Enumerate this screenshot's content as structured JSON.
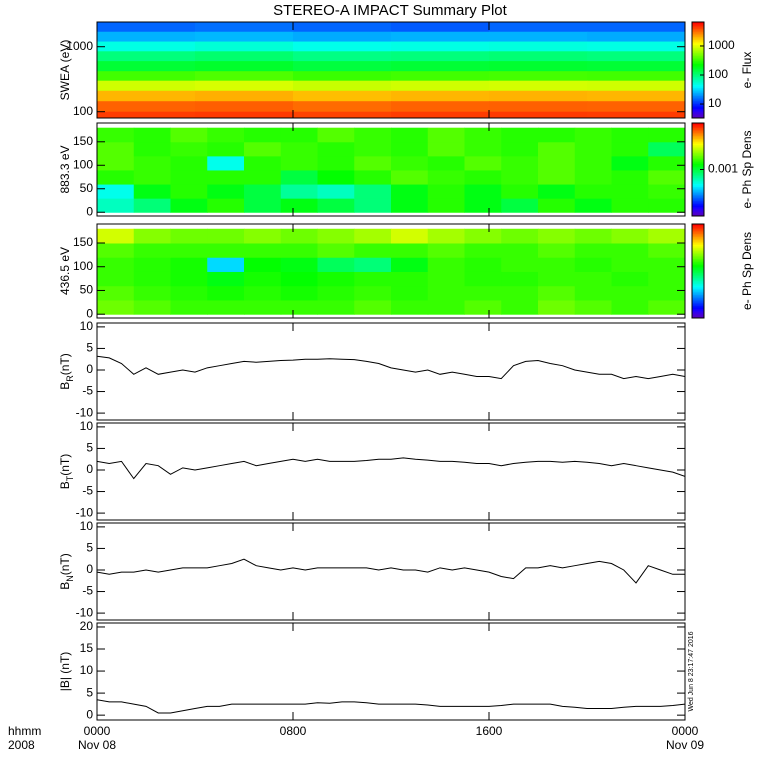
{
  "chart_data": [
    {
      "type": "heatmap",
      "title": "STEREO-A IMPACT Summary Plot",
      "ylabel": "SWEA (eV)",
      "ylog": true,
      "ylim": [
        80,
        2400
      ],
      "yticks": [
        100,
        1000
      ],
      "xlim": [
        0,
        24
      ],
      "xbins": [
        0,
        4,
        8,
        12,
        16,
        20,
        24
      ],
      "ybins": [
        2400,
        1700,
        1200,
        850,
        600,
        420,
        300,
        210,
        145,
        100,
        80
      ],
      "z": [
        [
          15,
          16,
          15,
          14,
          15,
          15
        ],
        [
          25,
          26,
          24,
          25,
          25,
          24
        ],
        [
          50,
          55,
          48,
          50,
          52,
          50
        ],
        [
          100,
          110,
          95,
          100,
          105,
          100
        ],
        [
          160,
          170,
          150,
          160,
          165,
          160
        ],
        [
          350,
          380,
          330,
          350,
          360,
          350
        ],
        [
          900,
          950,
          850,
          900,
          920,
          900
        ],
        [
          2000,
          2100,
          1900,
          2000,
          2050,
          2000
        ],
        [
          3500,
          3600,
          3300,
          3500,
          3550,
          3500
        ],
        [
          4500,
          4600,
          4300,
          4500,
          4550,
          4500
        ]
      ],
      "colormap": "rainbow",
      "clog": true,
      "clim": [
        3.3,
        6700
      ],
      "cbticks": [
        10,
        100,
        1000
      ],
      "cblabel": "e- Flux"
    },
    {
      "type": "heatmap",
      "ylabel": "883.3 eV",
      "ylog": false,
      "ylim": [
        -8,
        190
      ],
      "yticks": [
        0,
        50,
        100,
        150
      ],
      "xlim": [
        0,
        24
      ],
      "xbins": [
        0,
        1.5,
        3,
        4.5,
        6,
        7.5,
        9,
        10.5,
        12,
        13.5,
        15,
        16.5,
        18,
        19.5,
        21,
        22.5,
        24
      ],
      "ybins": [
        0,
        30,
        60,
        90,
        120,
        150,
        180
      ],
      "z": [
        [
          0.0006,
          0.0008,
          0.0012,
          0.0015,
          0.001,
          0.0012,
          0.001,
          0.0008,
          0.0012,
          0.0015,
          0.0012,
          0.001,
          0.0015,
          0.0012,
          0.0015,
          0.0015
        ],
        [
          0.0005,
          0.0012,
          0.0015,
          0.0012,
          0.001,
          0.0007,
          0.0006,
          0.0008,
          0.0012,
          0.0015,
          0.0012,
          0.0015,
          0.0012,
          0.0015,
          0.0015,
          0.0016
        ],
        [
          0.0015,
          0.0016,
          0.0015,
          0.0015,
          0.0015,
          0.001,
          0.0013,
          0.0015,
          0.0018,
          0.0016,
          0.0015,
          0.0016,
          0.0018,
          0.0016,
          0.0015,
          0.0018
        ],
        [
          0.0018,
          0.0016,
          0.0015,
          0.0005,
          0.0015,
          0.0016,
          0.0015,
          0.0018,
          0.0016,
          0.0015,
          0.0018,
          0.0016,
          0.0018,
          0.0016,
          0.0012,
          0.0015
        ],
        [
          0.0018,
          0.0015,
          0.0016,
          0.0015,
          0.0018,
          0.0016,
          0.0015,
          0.0016,
          0.0015,
          0.0018,
          0.0016,
          0.0015,
          0.0018,
          0.0016,
          0.0015,
          0.0009
        ],
        [
          0.0016,
          0.0015,
          0.0018,
          0.0016,
          0.0015,
          0.0015,
          0.0018,
          0.0016,
          0.0015,
          0.0018,
          0.0016,
          0.0015,
          0.0015,
          0.0016,
          0.0015,
          0.0015
        ]
      ],
      "colormap": "rainbow",
      "clog": true,
      "clim": [
        0.0001,
        0.01
      ],
      "cbticks": [
        0.001
      ],
      "cblabel": "e- Ph Sp Dens"
    },
    {
      "type": "heatmap",
      "ylabel": "436.5 eV",
      "ylog": false,
      "ylim": [
        -8,
        190
      ],
      "yticks": [
        0,
        50,
        100,
        150
      ],
      "xlim": [
        0,
        24
      ],
      "xbins": [
        0,
        1.5,
        3,
        4.5,
        6,
        7.5,
        9,
        10.5,
        12,
        13.5,
        15,
        16.5,
        18,
        19.5,
        21,
        22.5,
        24
      ],
      "ybins": [
        0,
        30,
        60,
        90,
        120,
        150,
        180
      ],
      "z": [
        [
          0.002,
          0.0018,
          0.0016,
          0.0016,
          0.0016,
          0.0016,
          0.0016,
          0.0018,
          0.0016,
          0.0016,
          0.0018,
          0.0016,
          0.002,
          0.0018,
          0.0016,
          0.0018
        ],
        [
          0.0018,
          0.0016,
          0.0015,
          0.0014,
          0.0015,
          0.0014,
          0.0015,
          0.0016,
          0.0015,
          0.0016,
          0.0016,
          0.0016,
          0.0018,
          0.0016,
          0.0016,
          0.0016
        ],
        [
          0.0016,
          0.0015,
          0.0014,
          0.0012,
          0.0014,
          0.0013,
          0.0014,
          0.0015,
          0.0015,
          0.0016,
          0.0015,
          0.0015,
          0.0016,
          0.0016,
          0.0015,
          0.0016
        ],
        [
          0.0016,
          0.0015,
          0.0014,
          0.0004,
          0.0013,
          0.0012,
          0.0009,
          0.0008,
          0.0012,
          0.0016,
          0.0015,
          0.0016,
          0.0016,
          0.0015,
          0.0016,
          0.0016
        ],
        [
          0.0018,
          0.0016,
          0.0016,
          0.0016,
          0.0016,
          0.0016,
          0.0018,
          0.0016,
          0.0016,
          0.0018,
          0.0016,
          0.0016,
          0.0018,
          0.0016,
          0.0016,
          0.0018
        ],
        [
          0.003,
          0.0022,
          0.002,
          0.002,
          0.0022,
          0.002,
          0.0022,
          0.0025,
          0.003,
          0.0025,
          0.0022,
          0.002,
          0.0022,
          0.002,
          0.0022,
          0.0025
        ]
      ],
      "colormap": "rainbow",
      "clog": true,
      "clim": [
        0.0001,
        0.01
      ],
      "cblabel": "e- Ph Sp Dens"
    },
    {
      "type": "line",
      "ylabel": "B",
      "ylabel_sub": "R",
      "ylabel_unit": "(nT)",
      "ylim": [
        -11.6,
        10.9
      ],
      "yticks": [
        -10,
        -5,
        0,
        5,
        10
      ],
      "xlim": [
        0,
        24
      ],
      "x": [
        0,
        0.5,
        1,
        1.5,
        2,
        2.5,
        3,
        3.5,
        4,
        4.5,
        5,
        5.5,
        6,
        6.5,
        7,
        7.5,
        8,
        8.5,
        9,
        9.5,
        10,
        10.5,
        11,
        11.5,
        12,
        12.5,
        13,
        13.5,
        14,
        14.5,
        15,
        15.5,
        16,
        16.5,
        17,
        17.5,
        18,
        18.5,
        19,
        19.5,
        20,
        20.5,
        21,
        21.5,
        22,
        22.5,
        23,
        23.5,
        24
      ],
      "series": [
        {
          "color": "#000000",
          "values": [
            3.2,
            2.8,
            1.5,
            -1,
            0.5,
            -1,
            -0.5,
            0,
            -0.5,
            0.5,
            1,
            1.5,
            2,
            1.8,
            2,
            2.2,
            2.3,
            2.5,
            2.5,
            2.6,
            2.5,
            2.4,
            2,
            1.5,
            0.5,
            0,
            -0.5,
            0,
            -1,
            -0.5,
            -1,
            -1.5,
            -1.5,
            -2,
            1,
            2,
            2.2,
            1.5,
            1,
            0,
            -0.5,
            -1,
            -1,
            -2,
            -1.5,
            -2,
            -1.5,
            -1,
            -1.5
          ]
        }
      ]
    },
    {
      "type": "line",
      "ylabel": "B",
      "ylabel_sub": "T",
      "ylabel_unit": "(nT)",
      "ylim": [
        -11.6,
        10.9
      ],
      "yticks": [
        -10,
        -5,
        0,
        5,
        10
      ],
      "xlim": [
        0,
        24
      ],
      "x": [
        0,
        0.5,
        1,
        1.5,
        2,
        2.5,
        3,
        3.5,
        4,
        4.5,
        5,
        5.5,
        6,
        6.5,
        7,
        7.5,
        8,
        8.5,
        9,
        9.5,
        10,
        10.5,
        11,
        11.5,
        12,
        12.5,
        13,
        13.5,
        14,
        14.5,
        15,
        15.5,
        16,
        16.5,
        17,
        17.5,
        18,
        18.5,
        19,
        19.5,
        20,
        20.5,
        21,
        21.5,
        22,
        22.5,
        23,
        23.5,
        24
      ],
      "series": [
        {
          "color": "#000000",
          "values": [
            2,
            1.5,
            2,
            -2,
            1.5,
            1,
            -1,
            0.5,
            0,
            0.5,
            1,
            1.5,
            2,
            1,
            1.5,
            2,
            2.5,
            2,
            2.5,
            2,
            2,
            2,
            2.2,
            2.5,
            2.5,
            2.8,
            2.5,
            2.3,
            2,
            2,
            1.8,
            1.5,
            1.5,
            1,
            1.5,
            1.8,
            2,
            2,
            1.8,
            2,
            1.8,
            1.5,
            1,
            1.5,
            1,
            0.5,
            0,
            -0.5,
            -1.5
          ]
        }
      ]
    },
    {
      "type": "line",
      "ylabel": "B",
      "ylabel_sub": "N",
      "ylabel_unit": "(nT)",
      "ylim": [
        -11.6,
        10.9
      ],
      "yticks": [
        -10,
        -5,
        0,
        5,
        10
      ],
      "xlim": [
        0,
        24
      ],
      "x": [
        0,
        0.5,
        1,
        1.5,
        2,
        2.5,
        3,
        3.5,
        4,
        4.5,
        5,
        5.5,
        6,
        6.5,
        7,
        7.5,
        8,
        8.5,
        9,
        9.5,
        10,
        10.5,
        11,
        11.5,
        12,
        12.5,
        13,
        13.5,
        14,
        14.5,
        15,
        15.5,
        16,
        16.5,
        17,
        17.5,
        18,
        18.5,
        19,
        19.5,
        20,
        20.5,
        21,
        21.5,
        22,
        22.5,
        23,
        23.5,
        24
      ],
      "series": [
        {
          "color": "#000000",
          "values": [
            -0.5,
            -1,
            -0.5,
            -0.5,
            0,
            -0.5,
            0,
            0.5,
            0.5,
            0.5,
            1,
            1.5,
            2.5,
            1,
            0.5,
            0,
            0.5,
            0,
            0.5,
            0.5,
            0.5,
            0.5,
            0.5,
            0,
            0.5,
            0,
            0,
            -0.5,
            0.5,
            0,
            0.5,
            0,
            -0.5,
            -1.5,
            -2,
            0.5,
            0.5,
            1,
            0.5,
            1,
            1.5,
            2,
            1.5,
            0,
            -3,
            1,
            0,
            -1,
            -1
          ]
        }
      ]
    },
    {
      "type": "line",
      "ylabel": "|B| (nT)",
      "ylim": [
        -1.1,
        20.9
      ],
      "yticks": [
        0,
        5,
        10,
        15,
        20
      ],
      "xlim": [
        0,
        24
      ],
      "x": [
        0,
        0.5,
        1,
        1.5,
        2,
        2.5,
        3,
        3.5,
        4,
        4.5,
        5,
        5.5,
        6,
        6.5,
        7,
        7.5,
        8,
        8.5,
        9,
        9.5,
        10,
        10.5,
        11,
        11.5,
        12,
        12.5,
        13,
        13.5,
        14,
        14.5,
        15,
        15.5,
        16,
        16.5,
        17,
        17.5,
        18,
        18.5,
        19,
        19.5,
        20,
        20.5,
        21,
        21.5,
        22,
        22.5,
        23,
        23.5,
        24
      ],
      "series": [
        {
          "color": "#000000",
          "values": [
            3.5,
            3,
            3,
            2.5,
            2,
            0.5,
            0.5,
            1,
            1.5,
            2,
            2,
            2.5,
            2.5,
            2.5,
            2.5,
            2.5,
            2.5,
            2.5,
            2.8,
            2.7,
            3,
            3,
            2.8,
            2.5,
            2.5,
            2.5,
            2.5,
            2.3,
            2,
            2,
            2,
            2,
            2,
            2.2,
            2.5,
            2.5,
            2.5,
            2.5,
            2,
            1.8,
            1.5,
            1.5,
            1.5,
            1.8,
            2,
            2,
            2,
            2.2,
            2.5
          ]
        }
      ],
      "xticks": [
        {
          "value": 0,
          "label": "0000"
        },
        {
          "value": 8,
          "label": "0800"
        },
        {
          "value": 16,
          "label": "1600"
        },
        {
          "value": 24,
          "label": "0000"
        }
      ],
      "xdates": [
        {
          "value": 0,
          "label": "Nov 08"
        },
        {
          "value": 24,
          "label": "Nov 09"
        }
      ],
      "xunit_label": "hhmm",
      "year_label": "2008",
      "timestamp": "Wed Jun  8 23:17:47 2016"
    }
  ]
}
